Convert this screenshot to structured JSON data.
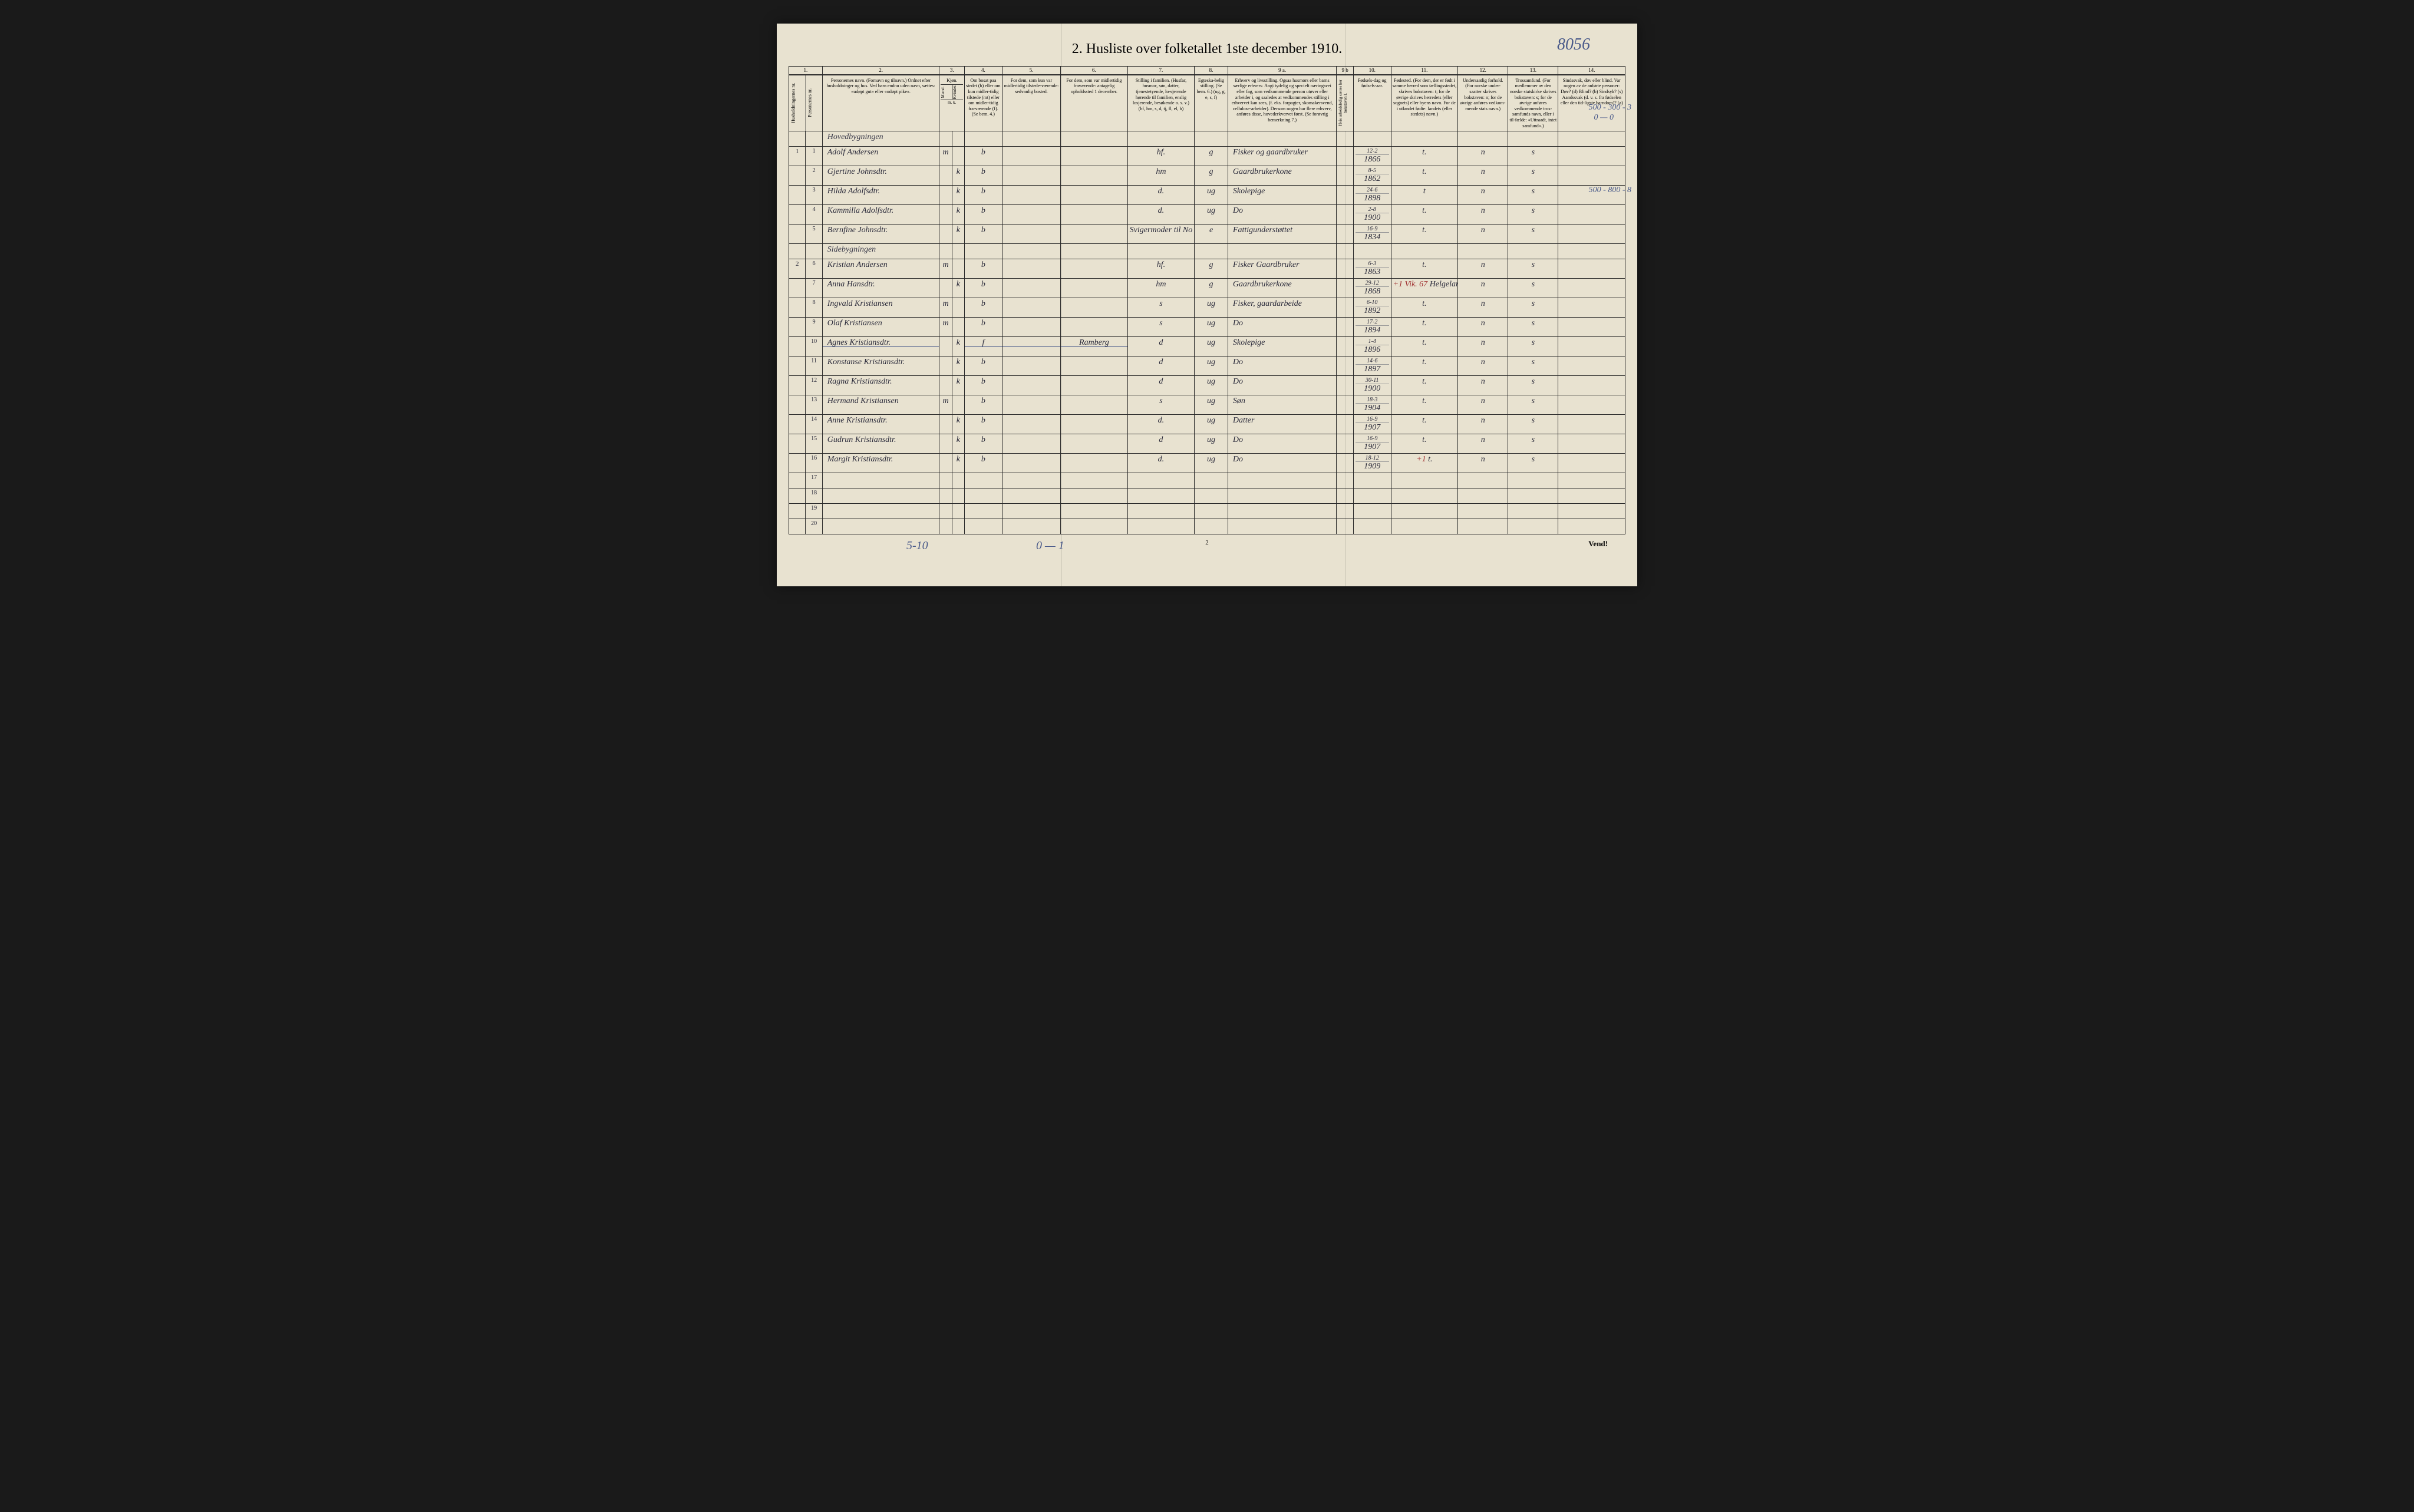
{
  "title": "2.  Husliste over folketallet 1ste december 1910.",
  "top_annotation": "8056",
  "page_number": "2",
  "vend": "Vend!",
  "bottom_left_anno": "5-10",
  "bottom_mid_anno": "0 — 1",
  "margin_anno_1": "500 - 300 - 3",
  "margin_anno_1b": "0 — 0",
  "margin_anno_2": "500 - 800 - 8",
  "col_nums": [
    "1.",
    "2.",
    "3.",
    "4.",
    "5.",
    "6.",
    "7.",
    "8.",
    "9 a.",
    "9 b",
    "10.",
    "11.",
    "12.",
    "13.",
    "14."
  ],
  "headers": {
    "h1a": "Husholdningernes nr.",
    "h1b": "Personernes nr.",
    "h2": "Personernes navn. (Fornavn og tilnavn.) Ordnet efter husholdninger og hus. Ved barn endnu uden navn, sættes: «udøpt gut» eller «udøpt pike».",
    "h3": "Kjøn.",
    "h3a": "Mænd.",
    "h3b": "Kvinder.",
    "h4": "Om bosat paa stedet (b) eller om kun midler-tidig tilstede (mt) eller om midler-tidig fra-værende (f). (Se bem. 4.)",
    "h5": "For dem, som kun var midlertidig tilstede-værende: sedvanlig bosted.",
    "h6": "For dem, som var midlertidig fraværende: antagelig opholdssted 1 december.",
    "h7": "Stilling i familien. (Husfar, husmor, søn, datter, tjenestetyende, lo-sjerende hørende til familien, enslig losjerende, besøkende o. s. v.) (hf, hm, s, d, tj, fl, el, b)",
    "h8": "Egteska-belig stilling. (Se bem. 6.) (ug, g, e, s, f)",
    "h9a": "Erhverv og livsstilling. Ogsaa husmors eller barns særlige erhverv. Angi tydelig og specielt næringsvei eller fag, som vedkommende person utøver eller arbeider i, og saaledes at vedkommendes stilling i erhvervet kan sees, (f. eks. forpagter, skomakersvend, cellulose-arbeider). Dersom nogen har flere erhverv, anføres disse, hovederkvervet først. (Se forøvrig bemerkning 7.)",
    "h9b": "Hvis arbeidsledig sættes her bokstaven l.",
    "h10": "Fødsels-dag og fødsels-aar.",
    "h11": "Fødested. (For dem, der er født i samme herred som tællingsstedet, skrives bokstaven: t; for de øvrige skrives herredets (eller sognets) eller byens navn. For de i utlandet fødte: landets (eller stedets) navn.)",
    "h12": "Undersaatlig forhold. (For norske under-saatter skrives bokstaven: n; for de øvrige anføres vedkom-mende stats navn.)",
    "h13": "Trossamfund. (For medlemmer av den norske statskirke skrives bokstaven: s; for de øvrige anføres vedkommende tros-samfunds navn, eller i til-fælde: «Uttraadt, intet samfund».)",
    "h14": "Sindssvak, døv eller blind. Var nogen av de anførte personer: Døv? (d) Blind? (b) Sindsyk? (s) Aandssvak (d. v. s. fra fødselen eller den tid-ligste barndom)? (a)",
    "mk": "m. k."
  },
  "section1": "Hovedbygningen",
  "section2": "Sidebygningen",
  "rows": [
    {
      "hh": "1",
      "p": "1",
      "name": "Adolf Andersen",
      "sex_m": "m",
      "sex_k": "",
      "res": "b",
      "c5": "",
      "c6": "",
      "fam": "hf.",
      "mar": "g",
      "occ": "Fisker og gaardbruker",
      "led": "",
      "dob": "12-2",
      "yr": "1866",
      "bp": "t.",
      "nat": "n",
      "rel": "s",
      "dis": ""
    },
    {
      "hh": "",
      "p": "2",
      "name": "Gjertine Johnsdtr.",
      "sex_m": "",
      "sex_k": "k",
      "res": "b",
      "c5": "",
      "c6": "",
      "fam": "hm",
      "mar": "g",
      "occ": "Gaardbrukerkone",
      "led": "",
      "dob": "8-5",
      "yr": "1862",
      "bp": "t.",
      "nat": "n",
      "rel": "s",
      "dis": ""
    },
    {
      "hh": "",
      "p": "3",
      "name": "Hilda Adolfsdtr.",
      "sex_m": "",
      "sex_k": "k",
      "res": "b",
      "c5": "",
      "c6": "",
      "fam": "d.",
      "mar": "ug",
      "occ": "Skolepige",
      "led": "",
      "dob": "24-6",
      "yr": "1898",
      "bp": "t",
      "nat": "n",
      "rel": "s",
      "dis": ""
    },
    {
      "hh": "",
      "p": "4",
      "name": "Kammilla Adolfsdtr.",
      "sex_m": "",
      "sex_k": "k",
      "res": "b",
      "c5": "",
      "c6": "",
      "fam": "d.",
      "mar": "ug",
      "occ": "Do",
      "led": "",
      "dob": "2-8",
      "yr": "1900",
      "bp": "t.",
      "nat": "n",
      "rel": "s",
      "dis": ""
    },
    {
      "hh": "",
      "p": "5",
      "name": "Bernfine Johnsdtr.",
      "sex_m": "",
      "sex_k": "k",
      "res": "b",
      "c5": "",
      "c6": "",
      "fam": "Svigermoder til No 1",
      "mar": "e",
      "occ": "Fattigunderstøttet",
      "led": "",
      "dob": "16-9",
      "yr": "1834",
      "bp": "t.",
      "nat": "n",
      "rel": "s",
      "dis": ""
    },
    {
      "hh": "2",
      "p": "6",
      "name": "Kristian Andersen",
      "sex_m": "m",
      "sex_k": "",
      "res": "b",
      "c5": "",
      "c6": "",
      "fam": "hf.",
      "mar": "g",
      "occ": "Fisker Gaardbruker",
      "led": "",
      "dob": "6-3",
      "yr": "1863",
      "bp": "t.",
      "nat": "n",
      "rel": "s",
      "dis": ""
    },
    {
      "hh": "",
      "p": "7",
      "name": "Anna Hansdtr.",
      "sex_m": "",
      "sex_k": "k",
      "res": "b",
      "c5": "",
      "c6": "",
      "fam": "hm",
      "mar": "g",
      "occ": "Gaardbrukerkone",
      "led": "",
      "dob": "29-12",
      "yr": "1868",
      "bp": "Helgeland",
      "nat": "n",
      "rel": "s",
      "dis": "",
      "bp_note": "+1 Vik. 67"
    },
    {
      "hh": "",
      "p": "8",
      "name": "Ingvald Kristiansen",
      "sex_m": "m",
      "sex_k": "",
      "res": "b",
      "c5": "",
      "c6": "",
      "fam": "s",
      "mar": "ug",
      "occ": "Fisker, gaardarbeide",
      "led": "",
      "dob": "6-10",
      "yr": "1892",
      "bp": "t.",
      "nat": "n",
      "rel": "s",
      "dis": ""
    },
    {
      "hh": "",
      "p": "9",
      "name": "Olaf Kristiansen",
      "sex_m": "m",
      "sex_k": "",
      "res": "b",
      "c5": "",
      "c6": "",
      "fam": "s",
      "mar": "ug",
      "occ": "Do",
      "led": "",
      "dob": "17-2",
      "yr": "1894",
      "bp": "t.",
      "nat": "n",
      "rel": "s",
      "dis": ""
    },
    {
      "hh": "",
      "p": "10",
      "name": "Agnes Kristiansdtr.",
      "sex_m": "",
      "sex_k": "k",
      "res": "f",
      "c5": "",
      "c6": "Ramberg",
      "fam": "d",
      "mar": "ug",
      "occ": "Skolepige",
      "led": "",
      "dob": "1-4",
      "yr": "1896",
      "bp": "t.",
      "nat": "n",
      "rel": "s",
      "dis": "",
      "struck": true
    },
    {
      "hh": "",
      "p": "11",
      "name": "Konstanse Kristiansdtr.",
      "sex_m": "",
      "sex_k": "k",
      "res": "b",
      "c5": "",
      "c6": "",
      "fam": "d",
      "mar": "ug",
      "occ": "Do",
      "led": "",
      "dob": "14-6",
      "yr": "1897",
      "bp": "t.",
      "nat": "n",
      "rel": "s",
      "dis": ""
    },
    {
      "hh": "",
      "p": "12",
      "name": "Ragna Kristiansdtr.",
      "sex_m": "",
      "sex_k": "k",
      "res": "b",
      "c5": "",
      "c6": "",
      "fam": "d",
      "mar": "ug",
      "occ": "Do",
      "led": "",
      "dob": "30-11",
      "yr": "1900",
      "bp": "t.",
      "nat": "n",
      "rel": "s",
      "dis": ""
    },
    {
      "hh": "",
      "p": "13",
      "name": "Hermand Kristiansen",
      "sex_m": "m",
      "sex_k": "",
      "res": "b",
      "c5": "",
      "c6": "",
      "fam": "s",
      "mar": "ug",
      "occ": "Søn",
      "led": "",
      "dob": "18-3",
      "yr": "1904",
      "bp": "t.",
      "nat": "n",
      "rel": "s",
      "dis": ""
    },
    {
      "hh": "",
      "p": "14",
      "name": "Anne Kristiansdtr.",
      "sex_m": "",
      "sex_k": "k",
      "res": "b",
      "c5": "",
      "c6": "",
      "fam": "d.",
      "mar": "ug",
      "occ": "Datter",
      "led": "",
      "dob": "16-9",
      "yr": "1907",
      "bp": "t.",
      "nat": "n",
      "rel": "s",
      "dis": ""
    },
    {
      "hh": "",
      "p": "15",
      "name": "Gudrun Kristiansdtr.",
      "sex_m": "",
      "sex_k": "k",
      "res": "b",
      "c5": "",
      "c6": "",
      "fam": "d",
      "mar": "ug",
      "occ": "Do",
      "led": "",
      "dob": "16-9",
      "yr": "1907",
      "bp": "t.",
      "nat": "n",
      "rel": "s",
      "dis": ""
    },
    {
      "hh": "",
      "p": "16",
      "name": "Margit Kristiansdtr.",
      "sex_m": "",
      "sex_k": "k",
      "res": "b",
      "c5": "",
      "c6": "",
      "fam": "d.",
      "mar": "ug",
      "occ": "Do",
      "led": "",
      "dob": "18-12",
      "yr": "1909",
      "bp": "t.",
      "nat": "n",
      "rel": "s",
      "dis": "",
      "bp_note": "+1"
    }
  ],
  "empty_rows": [
    "17",
    "18",
    "19",
    "20"
  ]
}
